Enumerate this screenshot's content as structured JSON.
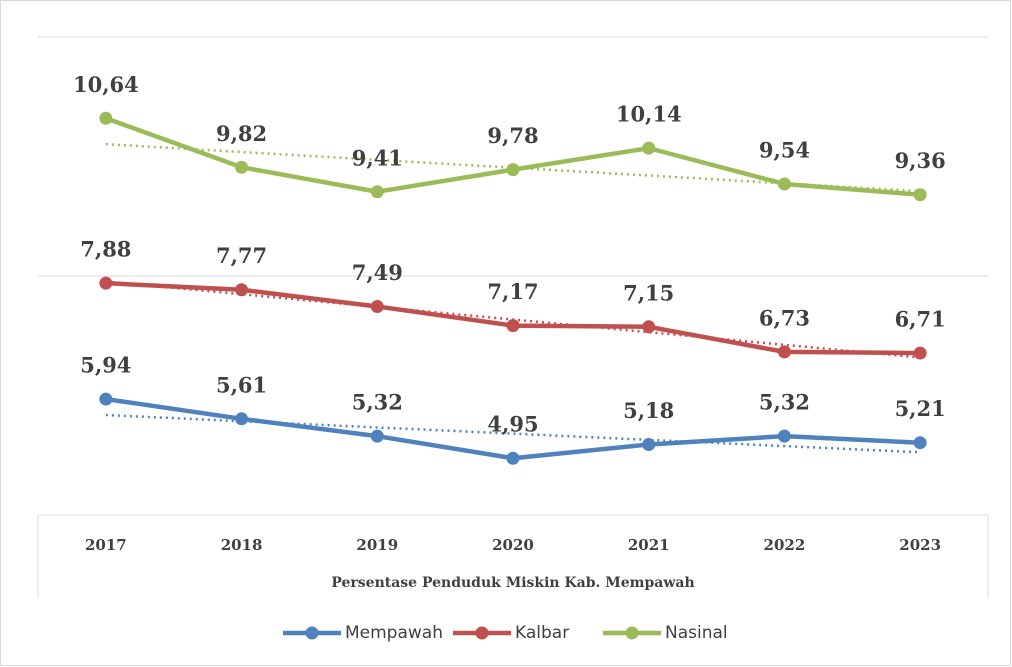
{
  "chart_data": {
    "type": "line",
    "x_label": "Persentase Penduduk Miskin Kab. Mempawah",
    "categories": [
      "2017",
      "2018",
      "2019",
      "2020",
      "2021",
      "2022",
      "2023"
    ],
    "series": [
      {
        "name": "Mempawah",
        "color": "#4f81bd",
        "values": [
          5.94,
          5.61,
          5.32,
          4.95,
          5.18,
          5.32,
          5.21
        ],
        "value_labels": [
          "5,94",
          "5,61",
          "5,32",
          "4,95",
          "5,18",
          "5,32",
          "5,21"
        ]
      },
      {
        "name": "Kalbar",
        "color": "#c0504d",
        "values": [
          7.88,
          7.77,
          7.49,
          7.17,
          7.15,
          6.73,
          6.71
        ],
        "value_labels": [
          "7,88",
          "7,77",
          "7,49",
          "7,17",
          "7,15",
          "6,73",
          "6,71"
        ]
      },
      {
        "name": "Nasinal",
        "color": "#9bbb59",
        "values": [
          10.64,
          9.82,
          9.41,
          9.78,
          10.14,
          9.54,
          9.36
        ],
        "value_labels": [
          "10,64",
          "9,82",
          "9,41",
          "9,78",
          "10,14",
          "9,54",
          "9,36"
        ]
      }
    ],
    "ylim": [
      4,
      12
    ],
    "yticks": [
      4,
      8,
      12
    ],
    "ytick_labels": false,
    "grid": true,
    "trendline": "linear",
    "legend": "bottom"
  }
}
